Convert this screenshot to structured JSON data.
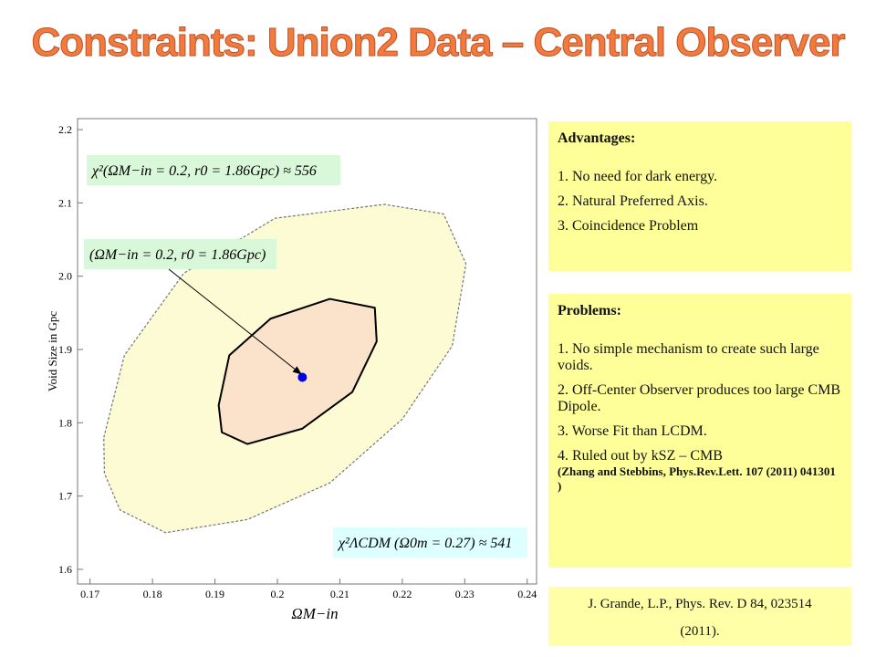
{
  "title": "Constraints: Union2 Data – Central Observer",
  "chart_data": {
    "type": "contour",
    "xlabel": "ΩM−in",
    "ylabel": "Void Size in Gpc",
    "xlim": [
      0.168,
      0.2415
    ],
    "ylim": [
      1.58,
      2.215
    ],
    "xticks": [
      0.17,
      0.18,
      0.19,
      0.2,
      0.21,
      0.22,
      0.23,
      0.24
    ],
    "yticks": [
      1.6,
      1.7,
      1.8,
      1.9,
      {
        "value": 2.0,
        "label": "2.0"
      },
      2.1,
      2.2
    ],
    "contours": [
      {
        "color": "#fdfbd4",
        "x": [
          0.1722,
          0.1755,
          0.185,
          0.1996,
          0.2171,
          0.2266,
          0.2302,
          0.228,
          0.22,
          0.2084,
          0.1952,
          0.1821,
          0.1748,
          0.1723
        ],
        "y": [
          1.78,
          1.892,
          2.004,
          2.079,
          2.098,
          2.085,
          2.017,
          1.905,
          1.805,
          1.718,
          1.668,
          1.65,
          1.681,
          1.731
        ]
      },
      {
        "color": "#fbe3cb",
        "x": [
          0.1906,
          0.1923,
          0.1989,
          0.2084,
          0.2156,
          0.2159,
          0.212,
          0.204,
          0.1952,
          0.1911
        ],
        "y": [
          1.824,
          1.892,
          1.942,
          1.969,
          1.957,
          1.911,
          1.842,
          1.792,
          1.771,
          1.787
        ]
      }
    ],
    "point": {
      "x": 0.204,
      "y": 1.862,
      "color": "#0000ee"
    },
    "annotations": [
      "χ²(ΩM−in = 0.2, r0 = 1.86Gpc) ≈ 556",
      "(ΩM−in = 0.2, r0 = 1.86Gpc)",
      "χ²ΛCDM (Ω0m = 0.27) ≈ 541"
    ]
  },
  "advantages": {
    "heading": "Advantages:",
    "items": [
      "1. No need for dark energy.",
      "2. Natural Preferred Axis.",
      "3. Coincidence Problem"
    ]
  },
  "problems": {
    "heading": "Problems:",
    "items": [
      "1. No simple mechanism to create such large voids.",
      "2. Off-Center Observer produces too large CMB Dipole.",
      "3. Worse Fit than LCDM.",
      "4. Ruled out by kSZ – CMB"
    ],
    "citation": "(Zhang and Stebbins, Phys.Rev.Lett. 107 (2011) 041301 )"
  },
  "reference": "J. Grande,  L.P., Phys. Rev. D 84, 023514 (2011)."
}
